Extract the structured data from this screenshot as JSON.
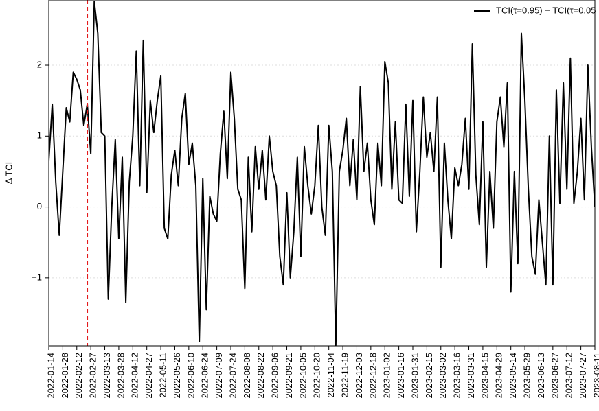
{
  "chart_data": {
    "type": "line",
    "y_label": "Δ TCI",
    "categories": [
      "2022-01-14",
      null,
      null,
      null,
      "2022-01-28",
      null,
      null,
      null,
      "2022-02-12",
      null,
      null,
      null,
      "2022-02-27",
      null,
      null,
      null,
      "2022-03-13",
      null,
      null,
      null,
      "2022-03-28",
      null,
      null,
      null,
      "2022-04-12",
      null,
      null,
      null,
      "2022-04-27",
      null,
      null,
      null,
      "2022-05-11",
      null,
      null,
      null,
      "2022-05-26",
      null,
      null,
      null,
      "2022-06-10",
      null,
      null,
      null,
      "2022-06-24",
      null,
      null,
      null,
      "2022-07-09",
      null,
      null,
      null,
      "2022-07-24",
      null,
      null,
      null,
      "2022-08-08",
      null,
      null,
      null,
      "2022-08-22",
      null,
      null,
      null,
      "2022-09-06",
      null,
      null,
      null,
      "2022-09-21",
      null,
      null,
      null,
      "2022-10-05",
      null,
      null,
      null,
      "2022-10-20",
      null,
      null,
      null,
      "2022-11-04",
      null,
      null,
      null,
      "2022-11-19",
      null,
      null,
      null,
      "2022-12-03",
      null,
      null,
      null,
      "2022-12-18",
      null,
      null,
      null,
      "2023-01-02",
      null,
      null,
      null,
      "2023-01-16",
      null,
      null,
      null,
      "2023-01-31",
      null,
      null,
      null,
      "2023-02-15",
      null,
      null,
      null,
      "2023-03-02",
      null,
      null,
      null,
      "2023-03-16",
      null,
      null,
      null,
      "2023-03-31",
      null,
      null,
      null,
      "2023-04-15",
      null,
      null,
      null,
      "2023-04-29",
      null,
      null,
      null,
      "2023-05-14",
      null,
      null,
      null,
      "2023-05-29",
      null,
      null,
      null,
      "2023-06-13",
      null,
      null,
      null,
      "2023-06-27",
      null,
      null,
      null,
      "2023-07-12",
      null,
      null,
      null,
      "2023-07-27",
      null,
      null,
      null,
      "2023-08-11"
    ],
    "series": [
      {
        "name": "TCI(τ=0.95) − TCI(τ=0.05",
        "color": "#000000",
        "values": [
          0.65,
          1.45,
          0.35,
          -0.4,
          0.5,
          1.4,
          1.2,
          1.9,
          1.8,
          1.65,
          1.15,
          1.45,
          0.75,
          2.9,
          2.45,
          1.05,
          1.0,
          -1.3,
          0.0,
          0.95,
          -0.45,
          0.7,
          -1.35,
          0.35,
          1.0,
          2.2,
          0.3,
          2.35,
          0.2,
          1.5,
          1.05,
          1.5,
          1.85,
          -0.3,
          -0.45,
          0.45,
          0.8,
          0.3,
          1.25,
          1.6,
          0.6,
          0.9,
          0.3,
          -1.9,
          0.4,
          -1.45,
          0.15,
          -0.1,
          -0.2,
          0.75,
          1.35,
          0.4,
          1.9,
          1.25,
          0.25,
          0.1,
          -1.15,
          0.7,
          -0.35,
          0.85,
          0.25,
          0.8,
          0.1,
          1.0,
          0.5,
          0.3,
          -0.7,
          -1.1,
          0.2,
          -1.0,
          -0.35,
          0.7,
          -0.7,
          0.85,
          0.3,
          -0.1,
          0.3,
          1.15,
          0.0,
          -0.4,
          1.15,
          0.5,
          -1.95,
          0.5,
          0.8,
          1.25,
          0.3,
          0.95,
          0.1,
          1.7,
          0.5,
          0.9,
          0.1,
          -0.25,
          0.9,
          0.3,
          2.05,
          1.75,
          0.25,
          1.2,
          0.1,
          0.05,
          1.45,
          0.15,
          1.5,
          -0.35,
          0.5,
          1.55,
          0.7,
          1.05,
          0.5,
          1.55,
          -0.85,
          0.9,
          0.1,
          -0.45,
          0.55,
          0.3,
          0.6,
          1.25,
          0.25,
          2.3,
          0.45,
          -0.25,
          1.2,
          -0.85,
          0.5,
          -0.3,
          1.2,
          1.55,
          0.85,
          1.75,
          -1.2,
          0.5,
          -0.8,
          2.45,
          1.5,
          0.25,
          -0.7,
          -0.95,
          0.1,
          -0.5,
          -1.1,
          1.0,
          -1.1,
          1.65,
          0.05,
          1.75,
          0.25,
          2.1,
          0.05,
          0.5,
          1.25,
          0.1,
          2.0,
          0.85,
          0.0
        ]
      }
    ],
    "ylim": [
      -1.96,
      2.92
    ],
    "yticks": [
      {
        "value": -1,
        "label": "−1"
      },
      0,
      1,
      2
    ],
    "grid": true,
    "vline": {
      "category_index": 11,
      "color": "#e31a1c"
    },
    "legend": "top-right"
  }
}
